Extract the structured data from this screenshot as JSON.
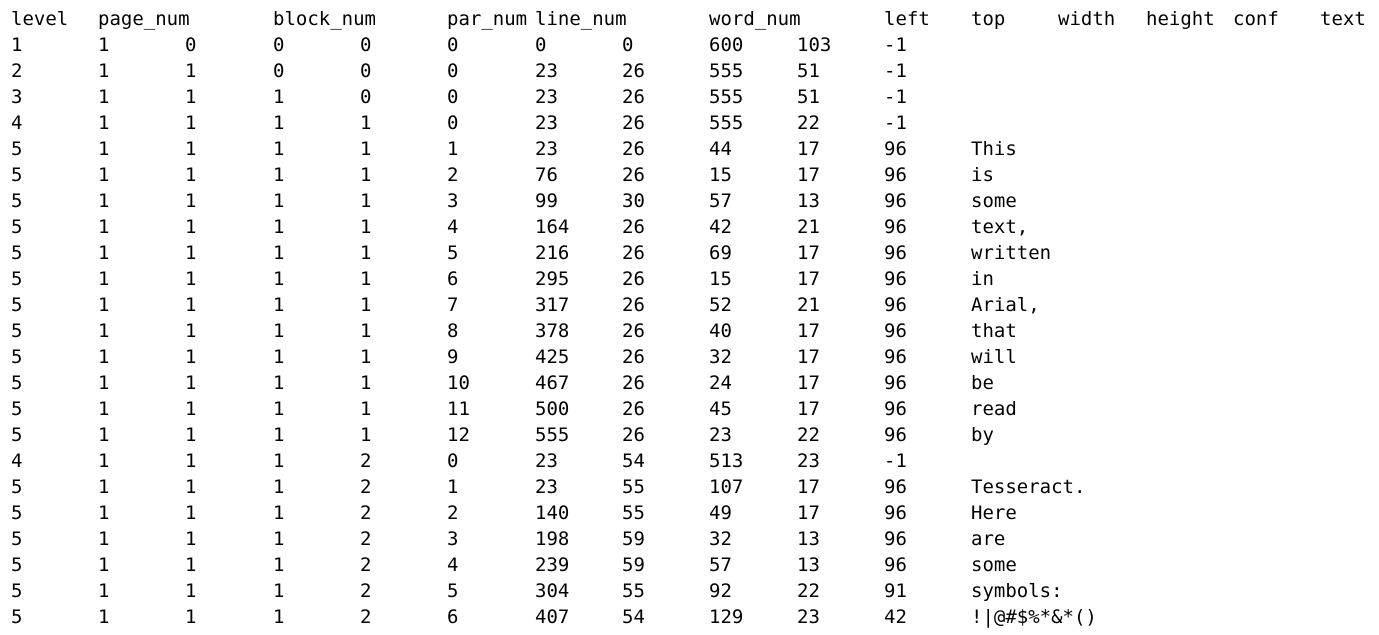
{
  "header": [
    {
      "text": "level",
      "col": 0
    },
    {
      "text": "page_num",
      "col": 1
    },
    {
      "text": "block_num",
      "col": 3
    },
    {
      "text": "par_num",
      "col": 5
    },
    {
      "text": "line_num",
      "col": 6
    },
    {
      "text": "word_num",
      "col": 8
    },
    {
      "text": "left",
      "col": 10
    },
    {
      "text": "top",
      "col": 11
    },
    {
      "text": "width",
      "col": 12
    },
    {
      "text": "height",
      "col": 13
    },
    {
      "text": "conf",
      "col": 14
    },
    {
      "text": "text",
      "col": 15
    }
  ],
  "rows": [
    [
      "1",
      "1",
      "0",
      "0",
      "0",
      "0",
      "0",
      "0",
      "600",
      "103",
      "-1",
      ""
    ],
    [
      "2",
      "1",
      "1",
      "0",
      "0",
      "0",
      "23",
      "26",
      "555",
      "51",
      "-1",
      ""
    ],
    [
      "3",
      "1",
      "1",
      "1",
      "0",
      "0",
      "23",
      "26",
      "555",
      "51",
      "-1",
      ""
    ],
    [
      "4",
      "1",
      "1",
      "1",
      "1",
      "0",
      "23",
      "26",
      "555",
      "22",
      "-1",
      ""
    ],
    [
      "5",
      "1",
      "1",
      "1",
      "1",
      "1",
      "23",
      "26",
      "44",
      "17",
      "96",
      "This"
    ],
    [
      "5",
      "1",
      "1",
      "1",
      "1",
      "2",
      "76",
      "26",
      "15",
      "17",
      "96",
      "is"
    ],
    [
      "5",
      "1",
      "1",
      "1",
      "1",
      "3",
      "99",
      "30",
      "57",
      "13",
      "96",
      "some"
    ],
    [
      "5",
      "1",
      "1",
      "1",
      "1",
      "4",
      "164",
      "26",
      "42",
      "21",
      "96",
      "text,"
    ],
    [
      "5",
      "1",
      "1",
      "1",
      "1",
      "5",
      "216",
      "26",
      "69",
      "17",
      "96",
      "written"
    ],
    [
      "5",
      "1",
      "1",
      "1",
      "1",
      "6",
      "295",
      "26",
      "15",
      "17",
      "96",
      "in"
    ],
    [
      "5",
      "1",
      "1",
      "1",
      "1",
      "7",
      "317",
      "26",
      "52",
      "21",
      "96",
      "Arial,"
    ],
    [
      "5",
      "1",
      "1",
      "1",
      "1",
      "8",
      "378",
      "26",
      "40",
      "17",
      "96",
      "that"
    ],
    [
      "5",
      "1",
      "1",
      "1",
      "1",
      "9",
      "425",
      "26",
      "32",
      "17",
      "96",
      "will"
    ],
    [
      "5",
      "1",
      "1",
      "1",
      "1",
      "10",
      "467",
      "26",
      "24",
      "17",
      "96",
      "be"
    ],
    [
      "5",
      "1",
      "1",
      "1",
      "1",
      "11",
      "500",
      "26",
      "45",
      "17",
      "96",
      "read"
    ],
    [
      "5",
      "1",
      "1",
      "1",
      "1",
      "12",
      "555",
      "26",
      "23",
      "22",
      "96",
      "by"
    ],
    [
      "4",
      "1",
      "1",
      "1",
      "2",
      "0",
      "23",
      "54",
      "513",
      "23",
      "-1",
      ""
    ],
    [
      "5",
      "1",
      "1",
      "1",
      "2",
      "1",
      "23",
      "55",
      "107",
      "17",
      "96",
      "Tesseract."
    ],
    [
      "5",
      "1",
      "1",
      "1",
      "2",
      "2",
      "140",
      "55",
      "49",
      "17",
      "96",
      "Here"
    ],
    [
      "5",
      "1",
      "1",
      "1",
      "2",
      "3",
      "198",
      "59",
      "32",
      "13",
      "96",
      "are"
    ],
    [
      "5",
      "1",
      "1",
      "1",
      "2",
      "4",
      "239",
      "59",
      "57",
      "13",
      "96",
      "some"
    ],
    [
      "5",
      "1",
      "1",
      "1",
      "2",
      "5",
      "304",
      "55",
      "92",
      "22",
      "91",
      "symbols:"
    ],
    [
      "5",
      "1",
      "1",
      "1",
      "2",
      "6",
      "407",
      "54",
      "129",
      "23",
      "42",
      "!|@#$%*&*()"
    ]
  ]
}
